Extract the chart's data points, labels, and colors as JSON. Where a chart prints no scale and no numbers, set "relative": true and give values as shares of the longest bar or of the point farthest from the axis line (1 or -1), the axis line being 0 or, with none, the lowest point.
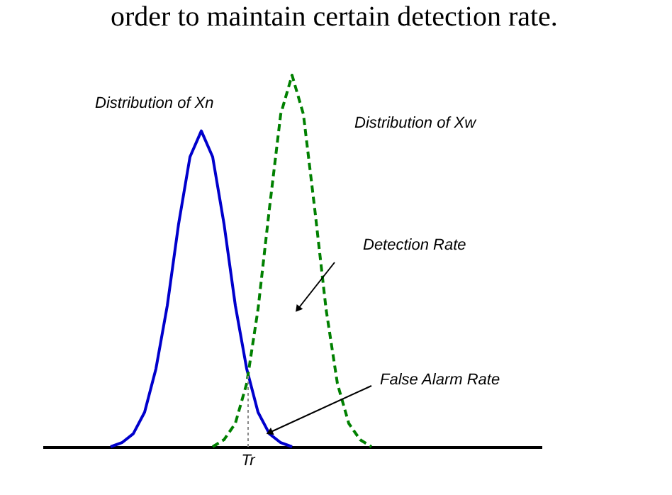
{
  "chart_data": {
    "type": "line",
    "title": "order to maintain certain detection rate.",
    "relative": true,
    "grid": false,
    "marker": "none",
    "categories": [
      null,
      null,
      null,
      null,
      null,
      null,
      null,
      null,
      null,
      null,
      null,
      null,
      null,
      null,
      null,
      null,
      null,
      null,
      null,
      null,
      null,
      null,
      null,
      null,
      null,
      null,
      null,
      null,
      null,
      null,
      null,
      null,
      null,
      null,
      null,
      null,
      null,
      null,
      null,
      null,
      null,
      null,
      null,
      null,
      null
    ],
    "series": [
      {
        "color": "#0000cc",
        "line_style": "solid",
        "values": [
          null,
          null,
          null,
          null,
          null,
          null,
          0,
          0.011,
          0.035,
          0.093,
          0.21,
          0.38,
          0.6,
          0.78,
          0.85,
          0.78,
          0.6,
          0.38,
          0.21,
          0.093,
          0.035,
          0.011,
          0,
          null,
          null,
          null,
          null,
          null,
          null,
          null,
          null,
          null,
          null,
          null,
          null,
          null,
          null,
          null,
          null,
          null,
          null,
          null,
          null,
          null,
          null
        ]
      },
      {
        "color": "#008000",
        "line_style": "dashed",
        "values": [
          null,
          null,
          null,
          null,
          null,
          null,
          null,
          null,
          null,
          null,
          null,
          null,
          null,
          null,
          null,
          0,
          0.019,
          0.063,
          0.17,
          0.37,
          0.64,
          0.895,
          1,
          0.895,
          0.64,
          0.37,
          0.17,
          0.063,
          0.019,
          0,
          null,
          null,
          null,
          null,
          null,
          null,
          null,
          null,
          null,
          null,
          null,
          null,
          null,
          null,
          null
        ]
      }
    ],
    "ref_lines": [
      {
        "axis": "x",
        "label": "Tr",
        "line_style": "dotted",
        "color": "#888888"
      }
    ],
    "annotations": [
      "Distribution of Xn",
      "Distribution of Xw",
      "Detection Rate",
      "False Alarm Rate"
    ]
  }
}
